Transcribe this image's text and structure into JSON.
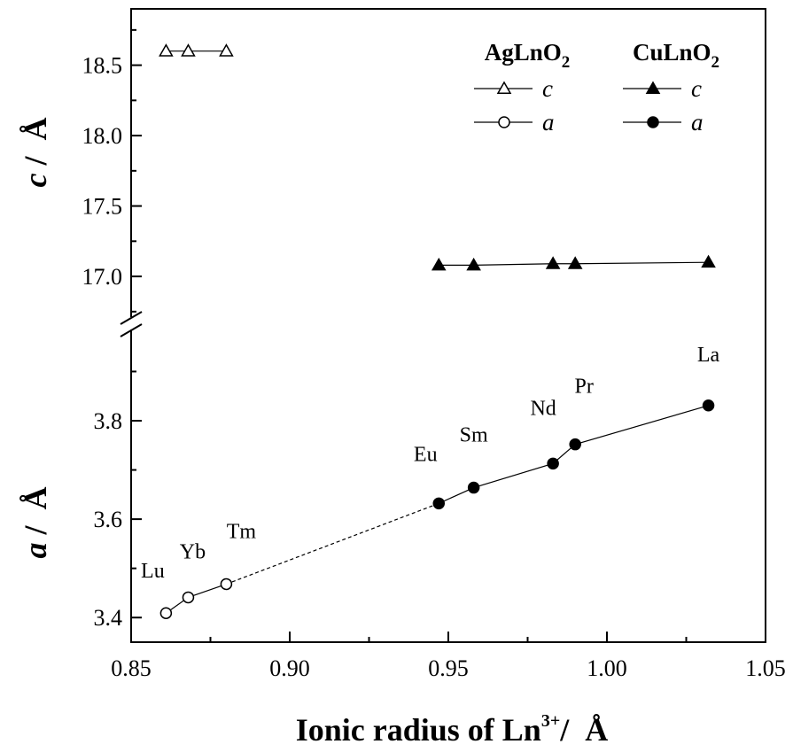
{
  "chart_data": {
    "type": "scatter",
    "xlabel": "Ionic radius of Ln",
    "xlabel_sup": "3+",
    "xlabel_unit": "/  Å",
    "xlim": [
      0.85,
      1.05
    ],
    "x_ticks": [
      "0.85",
      "0.90",
      "0.95",
      "1.00",
      "1.05"
    ],
    "upper_panel": {
      "ylabel_var": "c",
      "ylabel_unit": " /  Å",
      "ylim": [
        16.73,
        18.9
      ],
      "y_ticks": [
        "17.0",
        "17.5",
        "18.0",
        "18.5"
      ],
      "series": [
        {
          "name": "AgLnO2 c",
          "marker": "open-triangle",
          "line": "solid",
          "x": [
            0.861,
            0.868,
            0.88
          ],
          "y": [
            18.6,
            18.6,
            18.6
          ]
        },
        {
          "name": "CuLnO2 c",
          "marker": "filled-triangle",
          "line": "solid",
          "x": [
            0.947,
            0.958,
            0.983,
            0.99,
            1.032
          ],
          "y": [
            17.08,
            17.08,
            17.09,
            17.09,
            17.1
          ]
        }
      ]
    },
    "lower_panel": {
      "ylabel_var": "a",
      "ylabel_unit": " /  Å",
      "ylim": [
        3.35,
        3.98
      ],
      "y_ticks": [
        "3.4",
        "3.6",
        "3.8"
      ],
      "series": [
        {
          "name": "AgLnO2 a",
          "marker": "open-circle",
          "line": "solid",
          "x": [
            0.861,
            0.868,
            0.88
          ],
          "y": [
            3.409,
            3.441,
            3.468
          ]
        },
        {
          "name": "CuLnO2 a",
          "marker": "filled-circle",
          "line": "solid",
          "x": [
            0.947,
            0.958,
            0.983,
            0.99,
            1.032
          ],
          "y": [
            3.632,
            3.664,
            3.713,
            3.752,
            3.831
          ]
        }
      ],
      "dashed_connector": {
        "from": [
          0.88,
          3.468
        ],
        "to": [
          0.947,
          3.632
        ]
      }
    },
    "point_labels": [
      {
        "text": "Lu",
        "x": 0.861,
        "y": 3.409
      },
      {
        "text": "Yb",
        "x": 0.868,
        "y": 3.441
      },
      {
        "text": "Tm",
        "x": 0.88,
        "y": 3.468
      },
      {
        "text": "Eu",
        "x": 0.947,
        "y": 3.632
      },
      {
        "text": "Sm",
        "x": 0.958,
        "y": 3.664
      },
      {
        "text": "Nd",
        "x": 0.983,
        "y": 3.713
      },
      {
        "text": "Pr",
        "x": 0.99,
        "y": 3.752
      },
      {
        "text": "La",
        "x": 1.032,
        "y": 3.831
      }
    ],
    "legend": {
      "placement": "top-right",
      "groups": [
        {
          "title": "AgLnO",
          "title_sub": "2",
          "entries": [
            {
              "label": "c",
              "marker": "open-triangle"
            },
            {
              "label": "a",
              "marker": "open-circle"
            }
          ]
        },
        {
          "title": "CuLnO",
          "title_sub": "2",
          "entries": [
            {
              "label": "c",
              "marker": "filled-triangle"
            },
            {
              "label": "a",
              "marker": "filled-circle"
            }
          ]
        }
      ]
    },
    "axis_break": true,
    "grid": false
  }
}
